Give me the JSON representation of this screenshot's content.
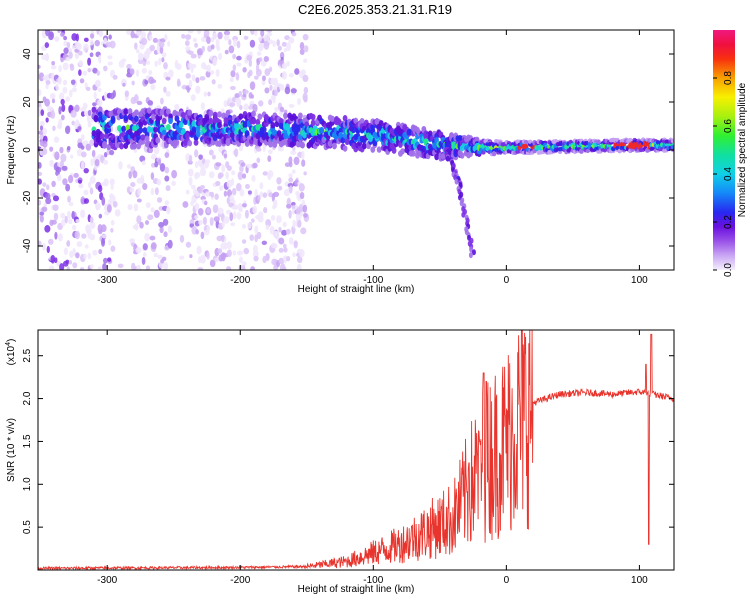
{
  "title": "C2E6.2025.353.21.31.R19",
  "chart_data": [
    {
      "type": "heatmap",
      "xlabel": "Height of straight line (km)",
      "ylabel": "Frequency (Hz)",
      "xlim": [
        -352,
        126
      ],
      "ylim": [
        -50,
        50
      ],
      "x_ticks": [
        -300,
        -200,
        -100,
        0,
        100
      ],
      "y_ticks": [
        -40,
        -20,
        0,
        20,
        40
      ],
      "colorbar": {
        "label": "Normalized spectral amplitude",
        "range": [
          0,
          1
        ],
        "ticks": [
          0.0,
          0.2,
          0.4,
          0.6,
          0.8
        ],
        "tick_labels": [
          "0.0",
          "0.2",
          "0.4",
          "0.6",
          "0.8"
        ]
      },
      "ridge": {
        "description_points": [
          {
            "x": -300,
            "y": 9,
            "width": 10
          },
          {
            "x": -200,
            "y": 9,
            "width": 8
          },
          {
            "x": -150,
            "y": 8,
            "width": 8
          },
          {
            "x": -100,
            "y": 6,
            "width": 8
          },
          {
            "x": -50,
            "y": 2,
            "width": 7
          },
          {
            "x": -20,
            "y": 1,
            "width": 4
          },
          {
            "x": 0,
            "y": 1,
            "width": 3
          },
          {
            "x": 100,
            "y": 2,
            "width": 3
          },
          {
            "x": 126,
            "y": 2,
            "width": 3
          }
        ],
        "branch": [
          {
            "x": -45,
            "y": 0
          },
          {
            "x": -35,
            "y": -15
          },
          {
            "x": -25,
            "y": -45
          }
        ]
      }
    },
    {
      "type": "line",
      "xlabel": "Height of straight line (km)",
      "ylabel": "SNR (10 * v/v)",
      "y_scale_label": "(x10",
      "y_scale_exp": "4",
      "y_scale_close": ")",
      "xlim": [
        -352,
        126
      ],
      "ylim": [
        0,
        2.8
      ],
      "x_ticks": [
        -300,
        -200,
        -100,
        0,
        100
      ],
      "y_ticks": [
        0.5,
        1.0,
        1.5,
        2.0,
        2.5
      ],
      "color": "#e8342c",
      "envelope": [
        {
          "x": -352,
          "y": 0.02
        },
        {
          "x": -200,
          "y": 0.03
        },
        {
          "x": -150,
          "y": 0.04
        },
        {
          "x": -120,
          "y": 0.1
        },
        {
          "x": -100,
          "y": 0.2
        },
        {
          "x": -80,
          "y": 0.3
        },
        {
          "x": -60,
          "y": 0.45
        },
        {
          "x": -40,
          "y": 0.6
        },
        {
          "x": -30,
          "y": 0.9
        },
        {
          "x": -20,
          "y": 1.2
        },
        {
          "x": -10,
          "y": 1.35
        },
        {
          "x": 0,
          "y": 1.5
        },
        {
          "x": 10,
          "y": 1.75
        },
        {
          "x": 20,
          "y": 1.95
        },
        {
          "x": 40,
          "y": 2.05
        },
        {
          "x": 60,
          "y": 2.07
        },
        {
          "x": 80,
          "y": 2.05
        },
        {
          "x": 100,
          "y": 2.08
        },
        {
          "x": 110,
          "y": 2.05
        },
        {
          "x": 126,
          "y": 2.0
        }
      ],
      "spikes": [
        {
          "x": -17,
          "y": 2.3
        },
        {
          "x": -20,
          "y": 1.5
        },
        {
          "x": -28,
          "y": 1.25
        },
        {
          "x": -15,
          "y": 2.2
        },
        {
          "x": 107,
          "y": 0.3
        },
        {
          "x": 109,
          "y": 2.75
        },
        {
          "x": 105,
          "y": 2.4
        }
      ]
    }
  ]
}
